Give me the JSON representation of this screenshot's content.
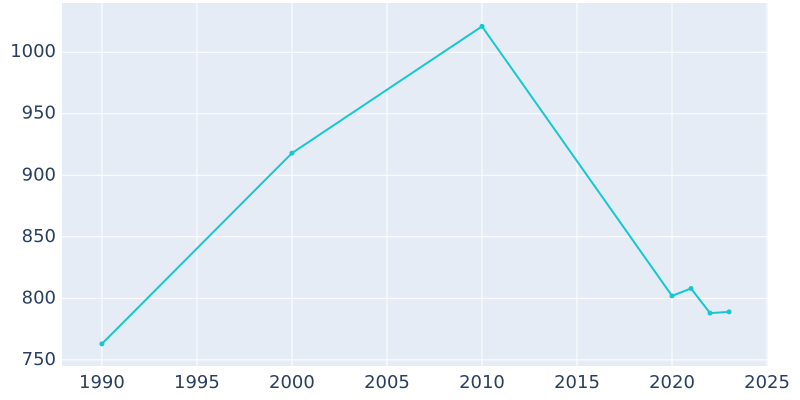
{
  "chart_data": {
    "type": "line",
    "x": [
      1990,
      2000,
      2010,
      2020,
      2021,
      2022,
      2023
    ],
    "series": [
      {
        "color": "#17c7cf",
        "values": [
          763,
          918,
          1021,
          802,
          808,
          788,
          789
        ]
      }
    ],
    "xlim": [
      1987.9,
      2025.05
    ],
    "xticks": [
      1990,
      1995,
      2000,
      2005,
      2010,
      2015,
      2020,
      2025
    ],
    "ylim": [
      745,
      1040
    ],
    "yticks": [
      750,
      800,
      850,
      900,
      950,
      1000
    ],
    "grid": true
  }
}
